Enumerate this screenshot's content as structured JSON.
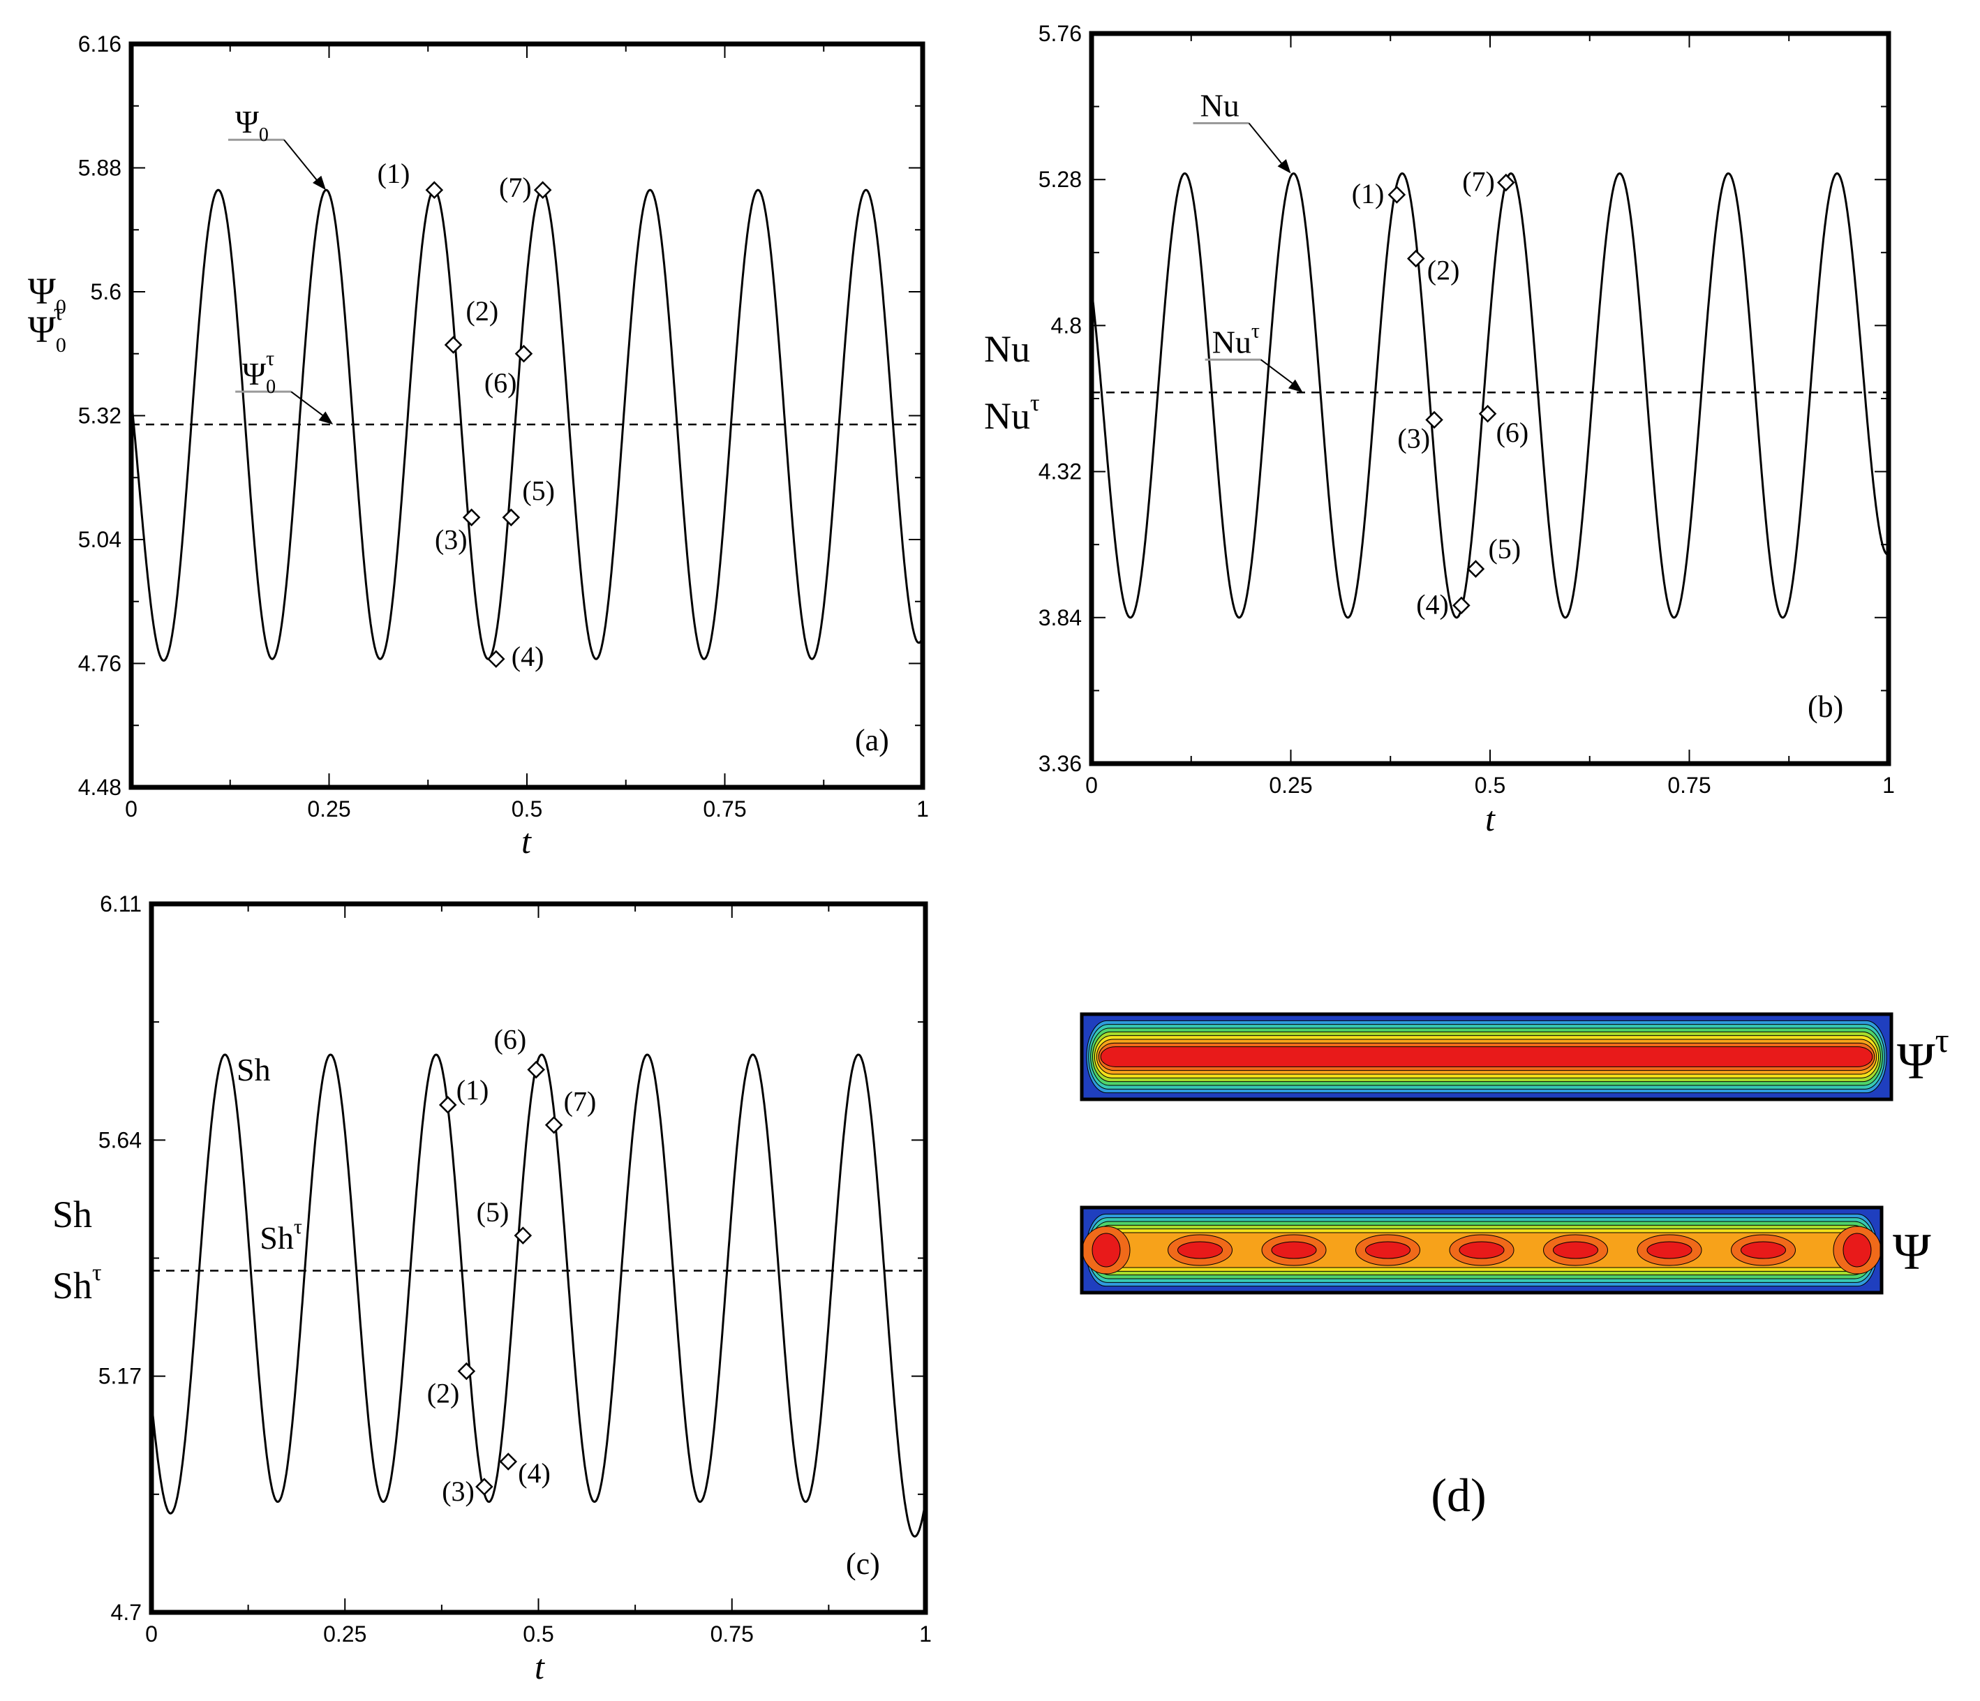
{
  "chart_data": [
    {
      "id": "a",
      "type": "line",
      "panel_label": "(a)",
      "xlabel": "t",
      "ylabel": [
        "Ψ0",
        "Ψ0τ"
      ],
      "xlim": [
        0,
        1
      ],
      "ylim": [
        4.48,
        6.16
      ],
      "xticks": [
        "0",
        "0.25",
        "0.5",
        "0.75",
        "1"
      ],
      "yticks": [
        "4.48",
        "4.76",
        "5.04",
        "5.32",
        "5.6",
        "5.88",
        "6.16"
      ],
      "oscillation": {
        "max": 5.83,
        "min": 4.77,
        "period": 0.1364,
        "first_peak_t": 0.11,
        "start_value": 5.36,
        "end_value": 4.82
      },
      "series": [
        {
          "name": "Ψ0",
          "style": "solid"
        },
        {
          "name": "Ψ0τ",
          "style": "dashed",
          "value": 5.3
        }
      ],
      "curve_labels": [
        {
          "base": "Ψ",
          "sub": "0",
          "sup": "",
          "line": "solid",
          "t": 0.246,
          "y": 5.83
        },
        {
          "base": "Ψ",
          "sub": "0",
          "sup": "τ",
          "line": "dashed",
          "t": 0.255,
          "y": 5.3
        }
      ],
      "markers": [
        {
          "label": "(1)",
          "t": 0.383,
          "y": 5.83
        },
        {
          "label": "(2)",
          "t": 0.407,
          "y": 5.48
        },
        {
          "label": "(3)",
          "t": 0.43,
          "y": 5.09
        },
        {
          "label": "(4)",
          "t": 0.461,
          "y": 4.77
        },
        {
          "label": "(5)",
          "t": 0.48,
          "y": 5.09
        },
        {
          "label": "(6)",
          "t": 0.496,
          "y": 5.46
        },
        {
          "label": "(7)",
          "t": 0.52,
          "y": 5.83
        }
      ]
    },
    {
      "id": "b",
      "type": "line",
      "panel_label": "(b)",
      "xlabel": "t",
      "ylabel": [
        "Nu",
        "Nuτ"
      ],
      "xlim": [
        0,
        1
      ],
      "ylim": [
        3.36,
        5.76
      ],
      "xticks": [
        "0",
        "0.25",
        "0.5",
        "0.75",
        "1"
      ],
      "yticks": [
        "3.36",
        "3.84",
        "4.32",
        "4.8",
        "5.28",
        "5.76"
      ],
      "oscillation": {
        "max": 5.3,
        "min": 3.84,
        "period": 0.1364,
        "first_peak_t": 0.117,
        "start_value": 4.92,
        "end_value": 4.05
      },
      "series": [
        {
          "name": "Nu",
          "style": "solid"
        },
        {
          "name": "Nuτ",
          "style": "dashed",
          "value": 4.58
        }
      ],
      "curve_labels": [
        {
          "base": "Nu",
          "sub": "",
          "sup": "",
          "line": "solid",
          "t": 0.25,
          "y": 5.3
        },
        {
          "base": "Nu",
          "sub": "",
          "sup": "τ",
          "line": "dashed",
          "t": 0.265,
          "y": 4.58
        }
      ],
      "markers": [
        {
          "label": "(1)",
          "t": 0.383,
          "y": 5.23
        },
        {
          "label": "(2)",
          "t": 0.407,
          "y": 5.02
        },
        {
          "label": "(3)",
          "t": 0.43,
          "y": 4.49
        },
        {
          "label": "(4)",
          "t": 0.464,
          "y": 3.88
        },
        {
          "label": "(5)",
          "t": 0.482,
          "y": 4.0
        },
        {
          "label": "(6)",
          "t": 0.497,
          "y": 4.51
        },
        {
          "label": "(7)",
          "t": 0.52,
          "y": 5.27
        }
      ]
    },
    {
      "id": "c",
      "type": "line",
      "panel_label": "(c)",
      "xlabel": "t",
      "ylabel": [
        "Sh",
        "Shτ"
      ],
      "xlim": [
        0,
        1
      ],
      "ylim": [
        4.7,
        6.11
      ],
      "xticks": [
        "0",
        "0.25",
        "0.5",
        "0.75",
        "1"
      ],
      "yticks": [
        "4.7",
        "5.17",
        "5.64",
        "6.11"
      ],
      "oscillation": {
        "max": 5.81,
        "min": 4.92,
        "period": 0.1364,
        "first_peak_t": 0.095,
        "start_value": 5.12,
        "end_value": 4.92
      },
      "series": [
        {
          "name": "Sh",
          "style": "solid"
        },
        {
          "name": "Shτ",
          "style": "dashed",
          "value": 5.38
        }
      ],
      "curve_labels": [
        {
          "base": "Sh",
          "sub": "",
          "sup": "",
          "line": "solid",
          "t": 0.11,
          "y": 5.77
        },
        {
          "base": "Sh",
          "sub": "",
          "sup": "τ",
          "line": "dashed",
          "t": 0.14,
          "y": 5.41
        }
      ],
      "markers": [
        {
          "label": "(1)",
          "t": 0.383,
          "y": 5.71
        },
        {
          "label": "(2)",
          "t": 0.407,
          "y": 5.18
        },
        {
          "label": "(3)",
          "t": 0.43,
          "y": 4.95
        },
        {
          "label": "(4)",
          "t": 0.461,
          "y": 5.0
        },
        {
          "label": "(5)",
          "t": 0.48,
          "y": 5.45
        },
        {
          "label": "(6)",
          "t": 0.497,
          "y": 5.78
        },
        {
          "label": "(7)",
          "t": 0.52,
          "y": 5.67
        }
      ]
    }
  ],
  "contours": {
    "panel_label": "(d)",
    "fields": [
      {
        "id": "mean",
        "label_base": "Ψ",
        "label_sup": "τ",
        "cells": 1
      },
      {
        "id": "instant",
        "label_base": "Ψ",
        "label_sup": "",
        "cells": 9
      }
    ],
    "colormap": [
      "#1f3fbf",
      "#2f9bdc",
      "#37c9b4",
      "#4fd36a",
      "#a8dc2c",
      "#f4e01a",
      "#f7a21a",
      "#f06a1a",
      "#e81a1a"
    ]
  }
}
